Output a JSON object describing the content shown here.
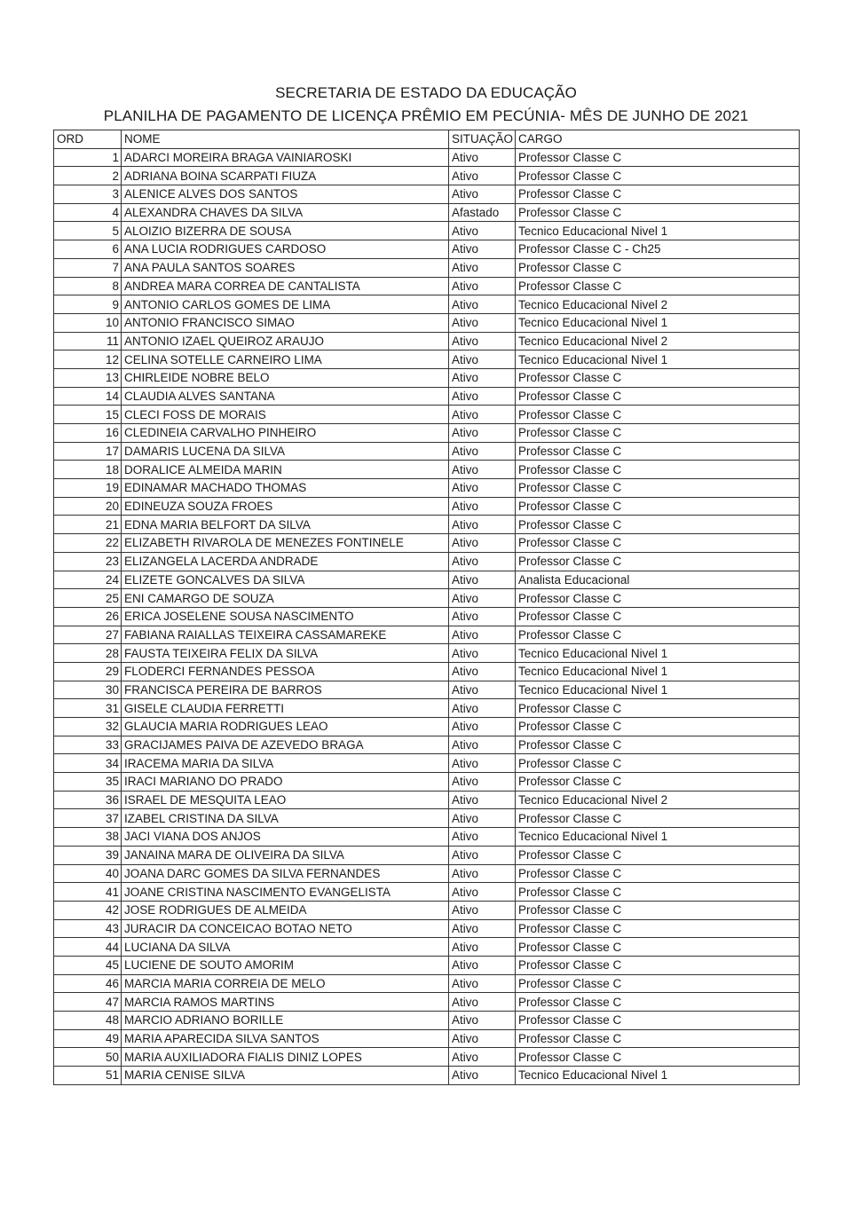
{
  "header": {
    "line1": "SECRETARIA DE ESTADO DA EDUCAÇÃO",
    "line2": "PLANILHA DE PAGAMENTO DE LICENÇA PRÊMIO EM PECÚNIA- MÊS DE JUNHO DE 2021"
  },
  "table": {
    "columns": [
      "ORD",
      "NOME",
      "SITUAÇÃO",
      "CARGO"
    ],
    "rows": [
      [
        "1",
        "ADARCI MOREIRA BRAGA VAINIAROSKI",
        "Ativo",
        "Professor Classe C"
      ],
      [
        "2",
        "ADRIANA BOINA SCARPATI FIUZA",
        "Ativo",
        "Professor Classe C"
      ],
      [
        "3",
        "ALENICE ALVES DOS SANTOS",
        "Ativo",
        "Professor Classe C"
      ],
      [
        "4",
        "ALEXANDRA CHAVES DA SILVA",
        "Afastado",
        "Professor Classe C"
      ],
      [
        "5",
        "ALOIZIO BIZERRA DE SOUSA",
        "Ativo",
        "Tecnico Educacional Nivel 1"
      ],
      [
        "6",
        "ANA LUCIA RODRIGUES CARDOSO",
        "Ativo",
        "Professor Classe C - Ch25"
      ],
      [
        "7",
        "ANA PAULA SANTOS SOARES",
        "Ativo",
        "Professor Classe C"
      ],
      [
        "8",
        "ANDREA MARA CORREA DE CANTALISTA",
        "Ativo",
        "Professor Classe C"
      ],
      [
        "9",
        "ANTONIO CARLOS GOMES DE LIMA",
        "Ativo",
        "Tecnico Educacional Nivel 2"
      ],
      [
        "10",
        "ANTONIO FRANCISCO SIMAO",
        "Ativo",
        "Tecnico Educacional Nivel 1"
      ],
      [
        "11",
        "ANTONIO IZAEL QUEIROZ ARAUJO",
        "Ativo",
        "Tecnico Educacional Nivel 2"
      ],
      [
        "12",
        "CELINA SOTELLE CARNEIRO LIMA",
        "Ativo",
        "Tecnico Educacional Nivel 1"
      ],
      [
        "13",
        "CHIRLEIDE NOBRE BELO",
        "Ativo",
        "Professor Classe C"
      ],
      [
        "14",
        "CLAUDIA ALVES SANTANA",
        "Ativo",
        "Professor Classe C"
      ],
      [
        "15",
        "CLECI FOSS DE MORAIS",
        "Ativo",
        "Professor Classe C"
      ],
      [
        "16",
        "CLEDINEIA CARVALHO PINHEIRO",
        "Ativo",
        "Professor Classe C"
      ],
      [
        "17",
        "DAMARIS LUCENA DA SILVA",
        "Ativo",
        "Professor Classe C"
      ],
      [
        "18",
        "DORALICE ALMEIDA MARIN",
        "Ativo",
        "Professor Classe C"
      ],
      [
        "19",
        "EDINAMAR MACHADO THOMAS",
        "Ativo",
        "Professor Classe C"
      ],
      [
        "20",
        "EDINEUZA SOUZA FROES",
        "Ativo",
        "Professor Classe C"
      ],
      [
        "21",
        "EDNA MARIA BELFORT DA SILVA",
        "Ativo",
        "Professor Classe C"
      ],
      [
        "22",
        "ELIZABETH RIVAROLA DE MENEZES FONTINELE",
        "Ativo",
        "Professor Classe C"
      ],
      [
        "23",
        "ELIZANGELA LACERDA ANDRADE",
        "Ativo",
        "Professor Classe C"
      ],
      [
        "24",
        "ELIZETE GONCALVES DA SILVA",
        "Ativo",
        "Analista Educacional"
      ],
      [
        "25",
        "ENI CAMARGO DE SOUZA",
        "Ativo",
        "Professor Classe C"
      ],
      [
        "26",
        "ERICA JOSELENE SOUSA NASCIMENTO",
        "Ativo",
        "Professor Classe C"
      ],
      [
        "27",
        "FABIANA RAIALLAS TEIXEIRA CASSAMAREKE",
        "Ativo",
        "Professor Classe C"
      ],
      [
        "28",
        "FAUSTA TEIXEIRA FELIX DA SILVA",
        "Ativo",
        "Tecnico Educacional Nivel 1"
      ],
      [
        "29",
        "FLODERCI FERNANDES PESSOA",
        "Ativo",
        "Tecnico Educacional Nivel 1"
      ],
      [
        "30",
        "FRANCISCA PEREIRA DE BARROS",
        "Ativo",
        "Tecnico Educacional Nivel 1"
      ],
      [
        "31",
        "GISELE CLAUDIA FERRETTI",
        "Ativo",
        "Professor Classe C"
      ],
      [
        "32",
        "GLAUCIA MARIA RODRIGUES LEAO",
        "Ativo",
        "Professor Classe C"
      ],
      [
        "33",
        "GRACIJAMES PAIVA DE AZEVEDO BRAGA",
        "Ativo",
        "Professor Classe C"
      ],
      [
        "34",
        "IRACEMA MARIA DA SILVA",
        "Ativo",
        "Professor Classe C"
      ],
      [
        "35",
        "IRACI MARIANO DO PRADO",
        "Ativo",
        "Professor Classe C"
      ],
      [
        "36",
        "ISRAEL DE MESQUITA LEAO",
        "Ativo",
        "Tecnico Educacional Nivel 2"
      ],
      [
        "37",
        "IZABEL CRISTINA DA SILVA",
        "Ativo",
        "Professor Classe C"
      ],
      [
        "38",
        "JACI VIANA DOS ANJOS",
        "Ativo",
        "Tecnico Educacional Nivel 1"
      ],
      [
        "39",
        "JANAINA MARA DE OLIVEIRA DA SILVA",
        "Ativo",
        "Professor Classe C"
      ],
      [
        "40",
        "JOANA DARC GOMES DA SILVA FERNANDES",
        "Ativo",
        "Professor Classe C"
      ],
      [
        "41",
        "JOANE CRISTINA NASCIMENTO EVANGELISTA",
        "Ativo",
        "Professor Classe C"
      ],
      [
        "42",
        "JOSE RODRIGUES DE ALMEIDA",
        "Ativo",
        "Professor Classe C"
      ],
      [
        "43",
        "JURACIR DA CONCEICAO BOTAO NETO",
        "Ativo",
        "Professor Classe C"
      ],
      [
        "44",
        "LUCIANA DA SILVA",
        "Ativo",
        "Professor Classe C"
      ],
      [
        "45",
        "LUCIENE DE SOUTO AMORIM",
        "Ativo",
        "Professor Classe C"
      ],
      [
        "46",
        "MARCIA MARIA CORREIA DE MELO",
        "Ativo",
        "Professor Classe C"
      ],
      [
        "47",
        "MARCIA RAMOS MARTINS",
        "Ativo",
        "Professor Classe C"
      ],
      [
        "48",
        "MARCIO ADRIANO BORILLE",
        "Ativo",
        "Professor Classe C"
      ],
      [
        "49",
        "MARIA APARECIDA SILVA SANTOS",
        "Ativo",
        "Professor Classe C"
      ],
      [
        "50",
        "MARIA AUXILIADORA FIALIS DINIZ LOPES",
        "Ativo",
        "Professor Classe C"
      ],
      [
        "51",
        "MARIA CENISE SILVA",
        "Ativo",
        "Tecnico Educacional Nivel 1"
      ]
    ]
  }
}
